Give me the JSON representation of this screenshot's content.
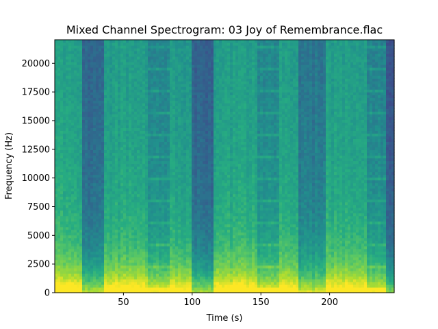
{
  "chart_data": {
    "type": "heatmap",
    "title": "Mixed Channel Spectrogram: 03 Joy of Remembrance.flac",
    "xlabel": "Time (s)",
    "ylabel": "Frequency (Hz)",
    "xlim": [
      0,
      247
    ],
    "ylim": [
      0,
      22050
    ],
    "x_ticks": [
      50,
      100,
      150,
      200
    ],
    "y_ticks": [
      0,
      2500,
      5000,
      7500,
      10000,
      12500,
      15000,
      17500,
      20000
    ],
    "colormap": "viridis",
    "segments": [
      {
        "t_start": 0,
        "t_end": 20,
        "energy": 0.62
      },
      {
        "t_start": 20,
        "t_end": 36,
        "energy": 0.38
      },
      {
        "t_start": 36,
        "t_end": 68,
        "energy": 0.6
      },
      {
        "t_start": 68,
        "t_end": 83,
        "energy": 0.5
      },
      {
        "t_start": 83,
        "t_end": 100,
        "energy": 0.58
      },
      {
        "t_start": 100,
        "t_end": 116,
        "energy": 0.36
      },
      {
        "t_start": 116,
        "t_end": 148,
        "energy": 0.6
      },
      {
        "t_start": 148,
        "t_end": 163,
        "energy": 0.5
      },
      {
        "t_start": 163,
        "t_end": 178,
        "energy": 0.6
      },
      {
        "t_start": 178,
        "t_end": 197,
        "energy": 0.44
      },
      {
        "t_start": 197,
        "t_end": 228,
        "energy": 0.6
      },
      {
        "t_start": 228,
        "t_end": 242,
        "energy": 0.5
      },
      {
        "t_start": 242,
        "t_end": 247,
        "energy": 0.3
      }
    ]
  }
}
